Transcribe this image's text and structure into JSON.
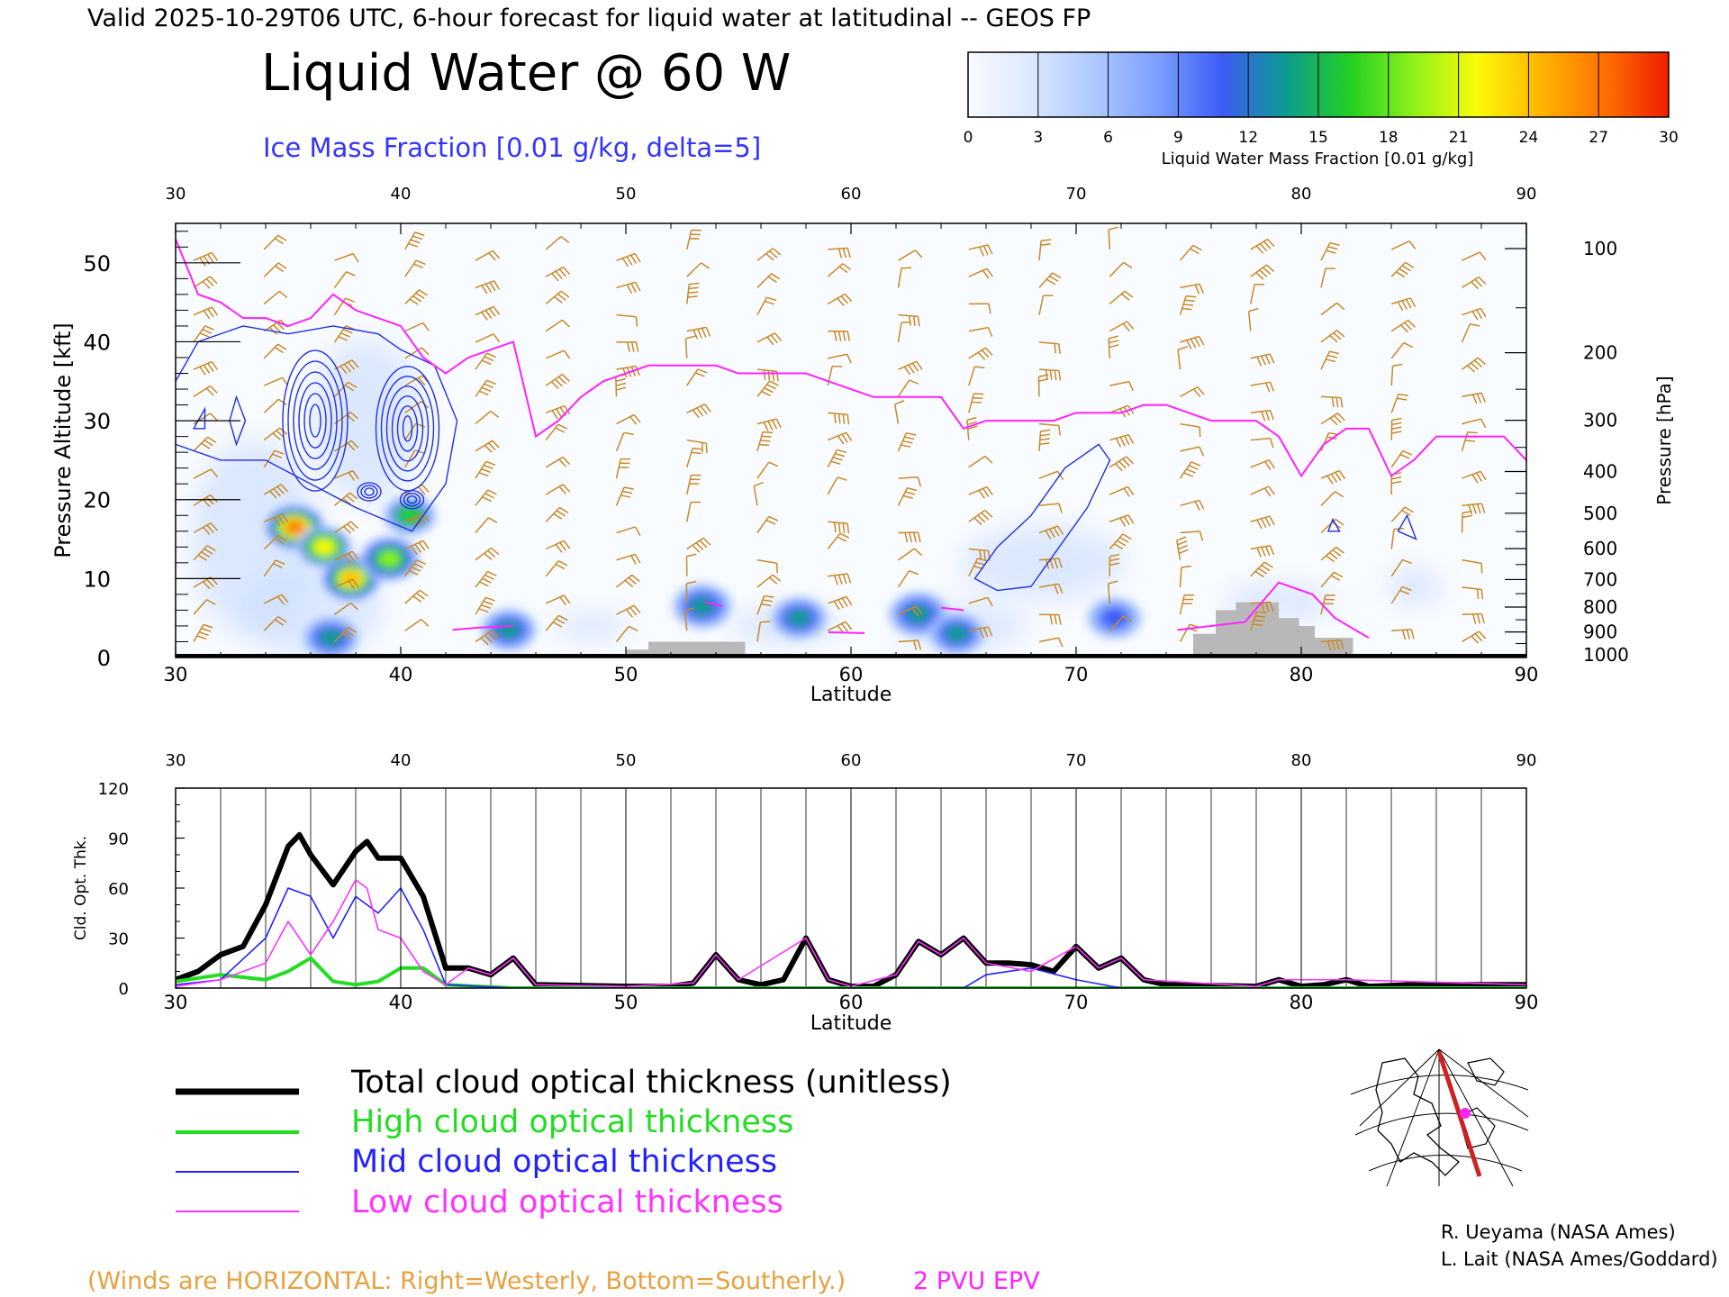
{
  "header": {
    "valid_line": "Valid 2025-10-29T06 UTC, 6-hour forecast for liquid water at latitudinal -- GEOS FP",
    "title": "Liquid Water @ 60 W",
    "ice_line": "Ice Mass Fraction [0.01 g/kg, delta=5]"
  },
  "colorbar": {
    "ticks": [
      "0",
      "3",
      "6",
      "9",
      "12",
      "15",
      "18",
      "21",
      "24",
      "27",
      "30"
    ],
    "label": "Liquid Water Mass Fraction [0.01 g/kg]",
    "colors": [
      "#f8fbff",
      "#dae8ff",
      "#adc8ff",
      "#7a9dff",
      "#3d5cf5",
      "#0d9c90",
      "#22cf22",
      "#8ef21a",
      "#fafa08",
      "#ffb400",
      "#ff7000",
      "#ee1e00"
    ]
  },
  "top_panel": {
    "lat_ticks": [
      "30",
      "40",
      "50",
      "60",
      "70",
      "80",
      "90"
    ],
    "alt_ticks": [
      "0",
      "10",
      "20",
      "30",
      "40",
      "50"
    ],
    "alt_label": "Pressure Altitude [kft]",
    "pres_ticks": [
      "100",
      "200",
      "300",
      "400",
      "500",
      "600",
      "700",
      "800",
      "900",
      "1000"
    ],
    "pres_label": "Pressure [hPa]",
    "xlabel": "Latitude"
  },
  "bottom_panel": {
    "lat_ticks": [
      "30",
      "40",
      "50",
      "60",
      "70",
      "80",
      "90"
    ],
    "y_ticks": [
      "0",
      "30",
      "60",
      "90",
      "120"
    ],
    "ylabel": "Cld. Opt. Thk.",
    "xlabel": "Latitude"
  },
  "legend": {
    "items": [
      {
        "label": "Total cloud optical thickness (unitless)",
        "color": "#000000"
      },
      {
        "label": "High cloud optical thickness",
        "color": "#22dd22"
      },
      {
        "label": "Mid cloud optical thickness",
        "color": "#2222ff"
      },
      {
        "label": "Low cloud optical thickness",
        "color": "#ff33ff"
      }
    ]
  },
  "footer": {
    "winds_note": "(Winds are HORIZONTAL: Right=Westerly, Bottom=Southerly.)",
    "epv_note": "2 PVU EPV",
    "credit1": "R. Ueyama (NASA Ames)",
    "credit2": "L. Lait (NASA Ames/Goddard)"
  },
  "colors": {
    "wind": "#c88a28",
    "epv": "#ff22ff",
    "ice": "#2030e0",
    "terrain": "#b8b8b8"
  },
  "chart_data": [
    {
      "type": "heatmap",
      "xlabel": "Latitude",
      "ylabel": "Pressure Altitude [kft]",
      "xlim": [
        30,
        90
      ],
      "ylim": [
        0,
        55
      ],
      "liquid_blobs": [
        {
          "lat": 35.3,
          "alt": 16.5,
          "value": 27
        },
        {
          "lat": 36.6,
          "alt": 14.0,
          "value": 20
        },
        {
          "lat": 37.8,
          "alt": 10.0,
          "value": 24
        },
        {
          "lat": 39.5,
          "alt": 12.5,
          "value": 18
        },
        {
          "lat": 40.4,
          "alt": 18.0,
          "value": 14
        },
        {
          "lat": 36.9,
          "alt": 2.5,
          "value": 13
        },
        {
          "lat": 44.8,
          "alt": 3.5,
          "value": 13
        },
        {
          "lat": 53.4,
          "alt": 6.5,
          "value": 12
        },
        {
          "lat": 57.7,
          "alt": 5.0,
          "value": 13
        },
        {
          "lat": 63.0,
          "alt": 5.5,
          "value": 12
        },
        {
          "lat": 64.7,
          "alt": 3.0,
          "value": 13
        },
        {
          "lat": 71.7,
          "alt": 5.0,
          "value": 10
        }
      ],
      "epv_2pvu_alt": [
        [
          30,
          53
        ],
        [
          31,
          46
        ],
        [
          32,
          45
        ],
        [
          33,
          43
        ],
        [
          34,
          43
        ],
        [
          35,
          42
        ],
        [
          36,
          43
        ],
        [
          37,
          46
        ],
        [
          38,
          44
        ],
        [
          39,
          43
        ],
        [
          40,
          42
        ],
        [
          41,
          38
        ],
        [
          42,
          36
        ],
        [
          43,
          38
        ],
        [
          44,
          39
        ],
        [
          45,
          40
        ],
        [
          46,
          28
        ],
        [
          47,
          30
        ],
        [
          48,
          33
        ],
        [
          49,
          35
        ],
        [
          50,
          36
        ],
        [
          51,
          37
        ],
        [
          52,
          37
        ],
        [
          53,
          37
        ],
        [
          54,
          37
        ],
        [
          55,
          36
        ],
        [
          56,
          36
        ],
        [
          57,
          36
        ],
        [
          58,
          36
        ],
        [
          59,
          35
        ],
        [
          60,
          34
        ],
        [
          61,
          33
        ],
        [
          62,
          33
        ],
        [
          63,
          33
        ],
        [
          64,
          33
        ],
        [
          65,
          29
        ],
        [
          66,
          30
        ],
        [
          67,
          30
        ],
        [
          68,
          30
        ],
        [
          69,
          30
        ],
        [
          70,
          31
        ],
        [
          71,
          31
        ],
        [
          72,
          31
        ],
        [
          73,
          32
        ],
        [
          74,
          32
        ],
        [
          75,
          31
        ],
        [
          76,
          30
        ],
        [
          77,
          30
        ],
        [
          78,
          30
        ],
        [
          79,
          28
        ],
        [
          80,
          23
        ],
        [
          81,
          27
        ],
        [
          82,
          29
        ],
        [
          83,
          29
        ],
        [
          84,
          23
        ],
        [
          85,
          25
        ],
        [
          86,
          28
        ],
        [
          87,
          28
        ],
        [
          88,
          28
        ],
        [
          89,
          28
        ],
        [
          90,
          25
        ]
      ],
      "terrain_alt": [
        [
          50.0,
          0
        ],
        [
          50.0,
          1
        ],
        [
          51.0,
          1
        ],
        [
          51.0,
          2
        ],
        [
          55.3,
          2
        ],
        [
          55.3,
          0
        ],
        [
          75.2,
          0
        ],
        [
          75.2,
          3
        ],
        [
          76.2,
          3
        ],
        [
          76.2,
          6
        ],
        [
          77.1,
          6
        ],
        [
          77.1,
          7
        ],
        [
          79.0,
          7
        ],
        [
          79.0,
          5
        ],
        [
          79.9,
          5
        ],
        [
          79.9,
          4
        ],
        [
          80.6,
          4
        ],
        [
          80.6,
          2.5
        ],
        [
          82.3,
          2.5
        ],
        [
          82.3,
          0
        ]
      ]
    },
    {
      "type": "line",
      "xlabel": "Latitude",
      "ylabel": "Cld. Opt. Thk.",
      "xlim": [
        30,
        90
      ],
      "ylim": [
        0,
        120
      ],
      "series": [
        {
          "name": "Total cloud optical thickness (unitless)",
          "x": [
            30,
            31,
            32,
            33,
            34,
            35,
            35.5,
            36,
            37,
            38,
            38.5,
            39,
            40,
            41,
            42,
            43,
            44,
            45,
            46,
            50,
            52,
            53,
            54,
            55,
            56,
            57,
            58,
            59,
            60,
            61,
            62,
            63,
            64,
            65,
            66,
            67,
            68,
            69,
            70,
            71,
            72,
            73,
            74,
            78,
            79,
            80,
            81,
            82,
            83,
            85,
            90
          ],
          "values": [
            5,
            10,
            20,
            25,
            50,
            85,
            92,
            80,
            62,
            82,
            88,
            78,
            78,
            55,
            12,
            12,
            8,
            18,
            2,
            1,
            1,
            3,
            20,
            5,
            2,
            5,
            30,
            5,
            1,
            1,
            8,
            28,
            20,
            30,
            15,
            15,
            14,
            10,
            25,
            12,
            18,
            5,
            2,
            1,
            5,
            1,
            2,
            5,
            1,
            2,
            2
          ]
        },
        {
          "name": "High cloud optical thickness",
          "x": [
            30,
            32,
            34,
            35,
            36,
            37,
            38,
            39,
            40,
            41,
            42,
            45,
            90
          ],
          "values": [
            4,
            8,
            5,
            10,
            18,
            4,
            2,
            4,
            12,
            12,
            2,
            0,
            0
          ]
        },
        {
          "name": "Mid cloud optical thickness",
          "x": [
            30,
            32,
            34,
            35,
            36,
            37,
            38,
            39,
            40,
            41,
            42,
            45,
            60,
            65,
            66,
            68,
            70,
            72,
            90
          ],
          "values": [
            2,
            5,
            30,
            60,
            55,
            30,
            55,
            45,
            60,
            35,
            2,
            0,
            0,
            0,
            8,
            12,
            5,
            0,
            0
          ]
        },
        {
          "name": "Low cloud optical thickness",
          "x": [
            30,
            32,
            34,
            35,
            36,
            37,
            38,
            38.5,
            39,
            40,
            41,
            42,
            43,
            44,
            45,
            46,
            50,
            53,
            54,
            55,
            58,
            59,
            60,
            62,
            63,
            64,
            65,
            66,
            68,
            70,
            71,
            72,
            73,
            78,
            79,
            82,
            90
          ],
          "values": [
            1,
            5,
            15,
            40,
            20,
            40,
            65,
            60,
            35,
            30,
            10,
            2,
            12,
            8,
            18,
            2,
            1,
            3,
            20,
            5,
            30,
            5,
            1,
            8,
            28,
            20,
            30,
            15,
            10,
            25,
            12,
            18,
            5,
            1,
            5,
            5,
            2
          ]
        }
      ]
    }
  ]
}
